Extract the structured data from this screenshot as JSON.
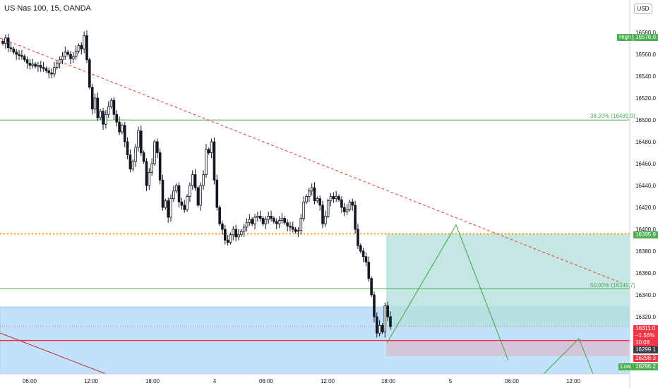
{
  "header": {
    "title": "US Nas 100, 15, OANDA",
    "currency": "USD"
  },
  "colors": {
    "up": "#131722",
    "down": "#131722",
    "fib": "#4caf50",
    "trend": "#e53935",
    "dotted": "#ff9800",
    "target_zone": "#b2dfdb",
    "stop_zone": "#d7c3d8",
    "demand_zone": "#bbdefb",
    "projection": "#43a047",
    "price_line": "#f23645"
  },
  "chart_data": {
    "type": "candlestick",
    "symbol": "US Nas 100",
    "timeframe": "15",
    "source": "OANDA",
    "ylim": [
      16280,
      16600
    ],
    "y_ticks": [
      16580.0,
      16560.0,
      16540.0,
      16520.0,
      16500.0,
      16480.0,
      16460.0,
      16440.0,
      16420.0,
      16400.0,
      16380.0,
      16360.0,
      16340.0,
      16320.0
    ],
    "x_ticks": [
      "06:00",
      "12:00",
      "18:00",
      "4",
      "06:00",
      "12:00",
      "18:00",
      "5",
      "06:00",
      "12:00"
    ],
    "closes": [
      16570,
      16575,
      16566,
      16565,
      16562,
      16560,
      16559,
      16558,
      16555,
      16552,
      16550,
      16551,
      16549,
      16550,
      16548,
      16547,
      16545,
      16543,
      16542,
      16548,
      16552,
      16555,
      16558,
      16562,
      16560,
      16556,
      16558,
      16563,
      16568,
      16565,
      16577,
      16555,
      16530,
      16510,
      16520,
      16502,
      16508,
      16496,
      16505,
      16512,
      16518,
      16505,
      16498,
      16489,
      16495,
      16480,
      16468,
      16455,
      16462,
      16475,
      16490,
      16470,
      16462,
      16440,
      16452,
      16460,
      16480,
      16470,
      16445,
      16420,
      16426,
      16411,
      16428,
      16435,
      16440,
      16425,
      16422,
      16418,
      16430,
      16440,
      16450,
      16438,
      16422,
      16440,
      16450,
      16473,
      16470,
      16480,
      16445,
      16420,
      16405,
      16400,
      16390,
      16388,
      16395,
      16400,
      16393,
      16395,
      16398,
      16402,
      16406,
      16409,
      16405,
      16411,
      16412,
      16410,
      16405,
      16409,
      16412,
      16410,
      16407,
      16405,
      16408,
      16410,
      16406,
      16403,
      16402,
      16400,
      16398,
      16399,
      16410,
      16425,
      16430,
      16435,
      16438,
      16426,
      16428,
      16422,
      16405,
      16412,
      16426,
      16430,
      16428,
      16430,
      16427,
      16420,
      16416,
      16418,
      16425,
      16422,
      16400,
      16385,
      16380,
      16375,
      16370,
      16355,
      16340,
      16320,
      16305,
      16312,
      16306,
      16330,
      16320,
      16311
    ],
    "price_levels": {
      "high": {
        "label": "High",
        "value": "16576.0"
      },
      "dotted_level": {
        "value": "16395.9"
      },
      "current": {
        "value": "16311.0",
        "change": "−1.56%",
        "countdown": "10:08"
      },
      "gray": {
        "value": "16299.1"
      },
      "red": {
        "value": "16298.3"
      },
      "low": {
        "label": "Low",
        "value": "16296.2"
      }
    },
    "fib_levels": [
      {
        "label": "38.20% (16499.9)",
        "value": 16499.9
      },
      {
        "label": "50.00% (16345.7)",
        "value": 16345.7
      }
    ],
    "trendline": {
      "from": 16575,
      "to": 16351
    },
    "zones": {
      "target": {
        "top": 16395.9,
        "bottom": 16311.0
      },
      "stop": {
        "top": 16298.3,
        "bottom": 16284.0
      },
      "demand": {
        "top": 16329.0,
        "bottom": 16280.0
      }
    },
    "projection": [
      16296.0,
      16404.0,
      16280.0
    ]
  }
}
